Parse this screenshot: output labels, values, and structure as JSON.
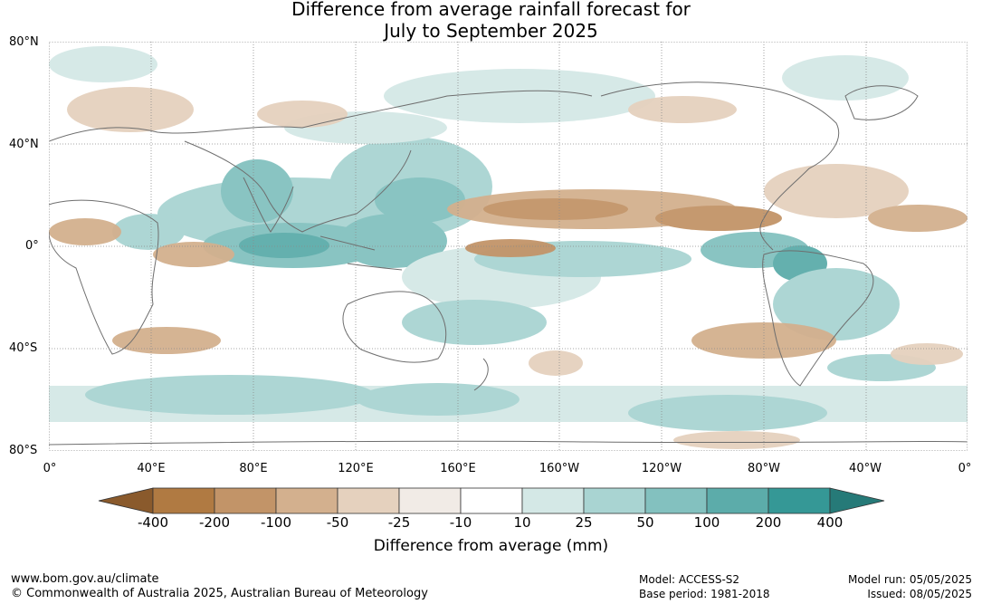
{
  "title": {
    "line1": "Difference from average rainfall forecast for",
    "line2": "July to September 2025"
  },
  "map": {
    "lat_labels": [
      "80°N",
      "40°N",
      "0°",
      "40°S",
      "80°S"
    ],
    "lon_labels": [
      "0°",
      "40°E",
      "80°E",
      "120°E",
      "160°E",
      "160°W",
      "120°W",
      "80°W",
      "40°W",
      "0°"
    ],
    "graticule": "dotted grey"
  },
  "legend": {
    "title": "Difference from average (mm)",
    "tick_labels": [
      "-400",
      "-200",
      "-100",
      "-50",
      "-25",
      "-10",
      "10",
      "25",
      "50",
      "100",
      "200",
      "400"
    ],
    "colors": [
      "#8a5a2c",
      "#b07a42",
      "#c29468",
      "#d3b08e",
      "#e5d1be",
      "#f1ebe6",
      "#ffffff",
      "#d4e8e6",
      "#a9d4d2",
      "#83c1bf",
      "#5cacaa",
      "#359896",
      "#267a78"
    ]
  },
  "footer": {
    "website": "www.bom.gov.au/climate",
    "copyright": "© Commonwealth of Australia 2025, Australian Bureau of Meteorology",
    "model": "Model: ACCESS-S2",
    "base_period": "Base period: 1981-2018",
    "model_run": "Model run: 05/05/2025",
    "issued": "Issued: 08/05/2025"
  }
}
